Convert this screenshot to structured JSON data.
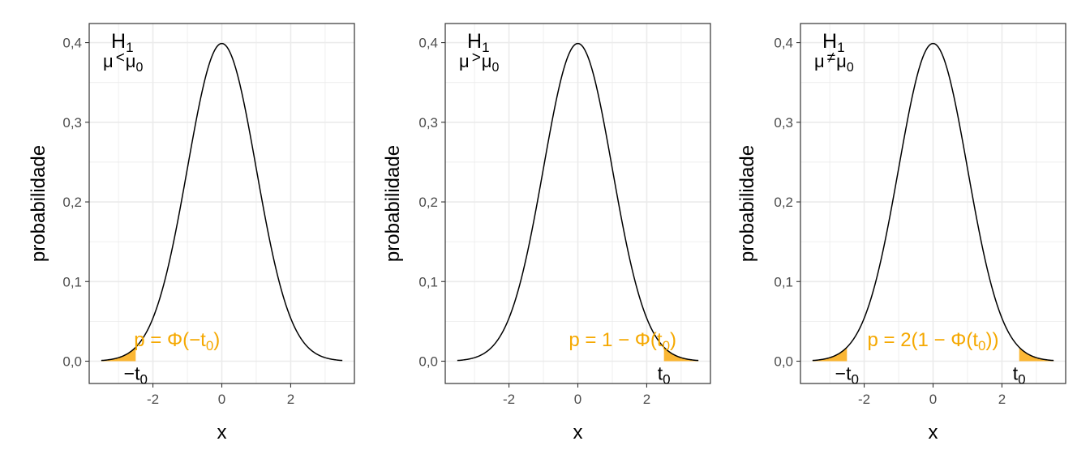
{
  "colors": {
    "curve": "#000000",
    "shade": "#FBB735",
    "pvalue_text": "#F5A800",
    "grid": "#EBEBEB",
    "panel_border": "#333333",
    "tick_text": "#4D4D4D"
  },
  "chart_data": [
    {
      "type": "area",
      "distribution": "standard-normal-density",
      "x_range": [
        -3.5,
        3.5
      ],
      "xlim": [
        -3.85,
        3.85
      ],
      "ylim": [
        -0.028,
        0.424
      ],
      "xticks": [
        -2,
        0,
        2
      ],
      "xtick_labels": [
        "-2",
        "0",
        "2"
      ],
      "yticks": [
        0.0,
        0.1,
        0.2,
        0.3,
        0.4
      ],
      "ytick_labels": [
        "0,0",
        "0,1",
        "0,2",
        "0,3",
        "0,4"
      ],
      "xlabel": "x",
      "ylabel": "probabilidade",
      "grid": true,
      "hypothesis": {
        "H": "H",
        "sub1": "1",
        "mu": "μ",
        "op": "<",
        "mu0": "μ",
        "sub0": "0"
      },
      "shaded_regions": [
        [
          -3.5,
          -2.5
        ]
      ],
      "threshold_labels": [
        {
          "x": -2.5,
          "prefix": "−t",
          "sub": "0"
        }
      ],
      "pvalue": {
        "x": -1.3,
        "y": 0.027,
        "parts": [
          "p = Φ(−t",
          "0",
          ")"
        ]
      }
    },
    {
      "type": "area",
      "distribution": "standard-normal-density",
      "x_range": [
        -3.5,
        3.5
      ],
      "xlim": [
        -3.85,
        3.85
      ],
      "ylim": [
        -0.028,
        0.424
      ],
      "xticks": [
        -2,
        0,
        2
      ],
      "xtick_labels": [
        "-2",
        "0",
        "2"
      ],
      "yticks": [
        0.0,
        0.1,
        0.2,
        0.3,
        0.4
      ],
      "ytick_labels": [
        "0,0",
        "0,1",
        "0,2",
        "0,3",
        "0,4"
      ],
      "xlabel": "x",
      "ylabel": "probabilidade",
      "grid": true,
      "hypothesis": {
        "H": "H",
        "sub1": "1",
        "mu": "μ",
        "op": ">",
        "mu0": "μ",
        "sub0": "0"
      },
      "shaded_regions": [
        [
          2.5,
          3.5
        ]
      ],
      "threshold_labels": [
        {
          "x": 2.5,
          "prefix": "t",
          "sub": "0"
        }
      ],
      "pvalue": {
        "x": 1.3,
        "y": 0.027,
        "parts": [
          "p = 1 − Φ(t",
          "0",
          ")"
        ]
      }
    },
    {
      "type": "area",
      "distribution": "standard-normal-density",
      "x_range": [
        -3.5,
        3.5
      ],
      "xlim": [
        -3.85,
        3.85
      ],
      "ylim": [
        -0.028,
        0.424
      ],
      "xticks": [
        -2,
        0,
        2
      ],
      "xtick_labels": [
        "-2",
        "0",
        "2"
      ],
      "yticks": [
        0.0,
        0.1,
        0.2,
        0.3,
        0.4
      ],
      "ytick_labels": [
        "0,0",
        "0,1",
        "0,2",
        "0,3",
        "0,4"
      ],
      "xlabel": "x",
      "ylabel": "probabilidade",
      "grid": true,
      "hypothesis": {
        "H": "H",
        "sub1": "1",
        "mu": "μ",
        "op": "≠",
        "mu0": "μ",
        "sub0": "0"
      },
      "shaded_regions": [
        [
          -3.5,
          -2.5
        ],
        [
          2.5,
          3.5
        ]
      ],
      "threshold_labels": [
        {
          "x": -2.5,
          "prefix": "−t",
          "sub": "0"
        },
        {
          "x": 2.5,
          "prefix": "t",
          "sub": "0"
        }
      ],
      "pvalue": {
        "x": 0.0,
        "y": 0.027,
        "parts": [
          "p = 2(1 − Φ(t",
          "0",
          "))"
        ]
      }
    }
  ]
}
